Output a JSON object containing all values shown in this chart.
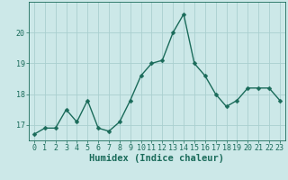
{
  "x": [
    0,
    1,
    2,
    3,
    4,
    5,
    6,
    7,
    8,
    9,
    10,
    11,
    12,
    13,
    14,
    15,
    16,
    17,
    18,
    19,
    20,
    21,
    22,
    23
  ],
  "y": [
    16.7,
    16.9,
    16.9,
    17.5,
    17.1,
    17.8,
    16.9,
    16.8,
    17.1,
    17.8,
    18.6,
    19.0,
    19.1,
    20.0,
    20.6,
    19.0,
    18.6,
    18.0,
    17.6,
    17.8,
    18.2,
    18.2,
    18.2,
    17.8
  ],
  "line_color": "#1a6b5a",
  "marker": "D",
  "markersize": 2.5,
  "linewidth": 1.0,
  "bg_color": "#cce8e8",
  "grid_color": "#aacfcf",
  "xlabel": "Humidex (Indice chaleur)",
  "ylim": [
    16.5,
    21.0
  ],
  "yticks": [
    17,
    18,
    19,
    20
  ],
  "xtick_labels": [
    "0",
    "1",
    "2",
    "3",
    "4",
    "5",
    "6",
    "7",
    "8",
    "9",
    "10",
    "11",
    "12",
    "13",
    "14",
    "15",
    "16",
    "17",
    "18",
    "19",
    "20",
    "21",
    "22",
    "23"
  ],
  "xlabel_fontsize": 7.5,
  "tick_fontsize": 6.0,
  "tick_color": "#1a6b5a",
  "axis_color": "#1a6b5a"
}
